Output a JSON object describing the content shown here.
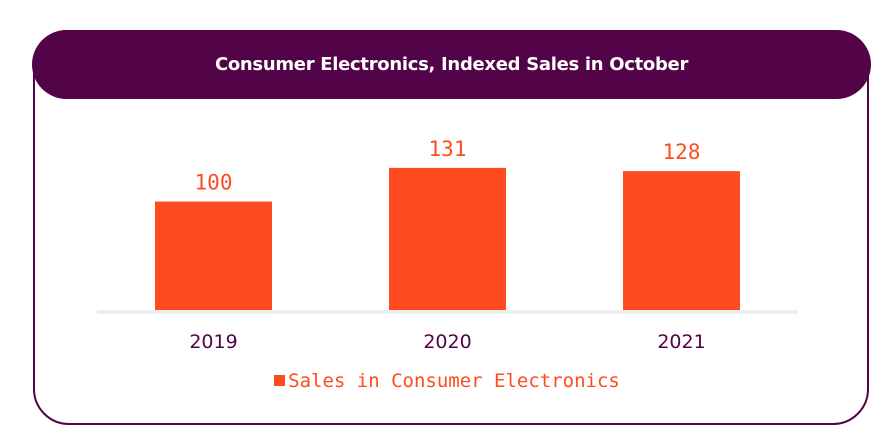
{
  "colors": {
    "bar": "#FF4B20",
    "header_bg": "#530347",
    "axis": "#EFEFEF",
    "category_text": "#530347",
    "value_text": "#FF4B20"
  },
  "chart_data": {
    "type": "bar",
    "title": "Consumer Electronics, Indexed Sales in October",
    "categories": [
      "2019",
      "2020",
      "2021"
    ],
    "series": [
      {
        "name": "Sales in Consumer Electronics",
        "values": [
          100,
          131,
          128
        ]
      }
    ],
    "xlabel": "",
    "ylabel": "",
    "ylim": [
      0,
      250
    ],
    "grid": false,
    "legend_position": "bottom-center",
    "data_labels": true
  }
}
